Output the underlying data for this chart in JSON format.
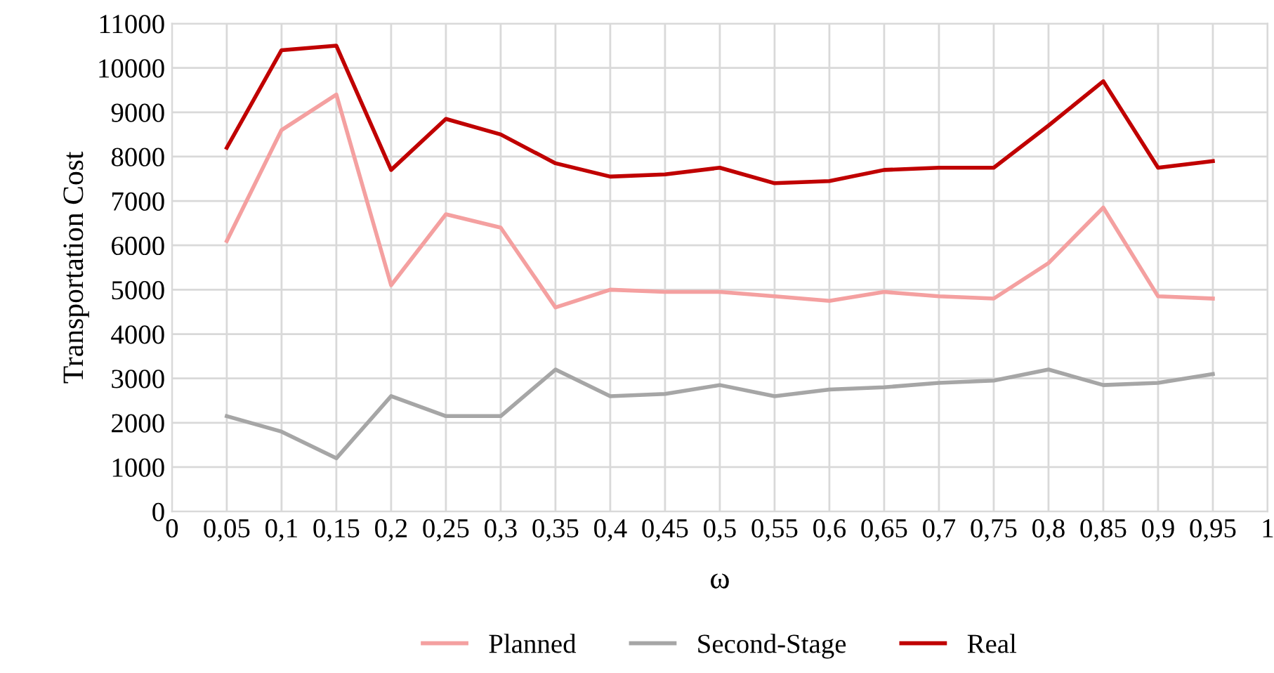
{
  "chart_data": {
    "type": "line",
    "xlabel": "ω",
    "ylabel": "Transportation Cost",
    "x": [
      0.05,
      0.1,
      0.15,
      0.2,
      0.25,
      0.3,
      0.35,
      0.4,
      0.45,
      0.5,
      0.55,
      0.6,
      0.65,
      0.7,
      0.75,
      0.8,
      0.85,
      0.9,
      0.95
    ],
    "series": [
      {
        "name": "Planned",
        "color": "#f4a0a0",
        "values": [
          6100,
          8600,
          9400,
          5100,
          6700,
          6400,
          4600,
          5000,
          4950,
          4950,
          4850,
          4750,
          4950,
          4850,
          4800,
          5600,
          6850,
          4850,
          4800
        ]
      },
      {
        "name": "Second-Stage",
        "color": "#a6a6a6",
        "values": [
          2150,
          1800,
          1200,
          2600,
          2150,
          2150,
          3200,
          2600,
          2650,
          2850,
          2600,
          2750,
          2800,
          2900,
          2950,
          3200,
          2850,
          2900,
          3100
        ]
      },
      {
        "name": "Real",
        "color": "#c00000",
        "values": [
          8200,
          10400,
          10500,
          7700,
          8850,
          8500,
          7850,
          7550,
          7600,
          7750,
          7400,
          7450,
          7700,
          7750,
          7750,
          8700,
          9700,
          7750,
          7900
        ]
      }
    ],
    "xlim": [
      0,
      1
    ],
    "xticks": [
      0,
      {
        "value": 0.05,
        "label": "0,05"
      },
      {
        "value": 0.1,
        "label": "0,1"
      },
      {
        "value": 0.15,
        "label": "0,15"
      },
      {
        "value": 0.2,
        "label": "0,2"
      },
      {
        "value": 0.25,
        "label": "0,25"
      },
      {
        "value": 0.3,
        "label": "0,3"
      },
      {
        "value": 0.35,
        "label": "0,35"
      },
      {
        "value": 0.4,
        "label": "0,4"
      },
      {
        "value": 0.45,
        "label": "0,45"
      },
      {
        "value": 0.5,
        "label": "0,5"
      },
      {
        "value": 0.55,
        "label": "0,55"
      },
      {
        "value": 0.6,
        "label": "0,6"
      },
      {
        "value": 0.65,
        "label": "0,65"
      },
      {
        "value": 0.7,
        "label": "0,7"
      },
      {
        "value": 0.75,
        "label": "0,75"
      },
      {
        "value": 0.8,
        "label": "0,8"
      },
      {
        "value": 0.85,
        "label": "0,85"
      },
      {
        "value": 0.9,
        "label": "0,9"
      },
      {
        "value": 0.95,
        "label": "0,95"
      },
      1
    ],
    "ylim": [
      0,
      11000
    ],
    "yticks": [
      0,
      1000,
      2000,
      3000,
      4000,
      5000,
      6000,
      7000,
      8000,
      9000,
      10000,
      11000
    ],
    "grid": true,
    "legend": "bottom",
    "line_style": "solid",
    "marker": "none"
  }
}
